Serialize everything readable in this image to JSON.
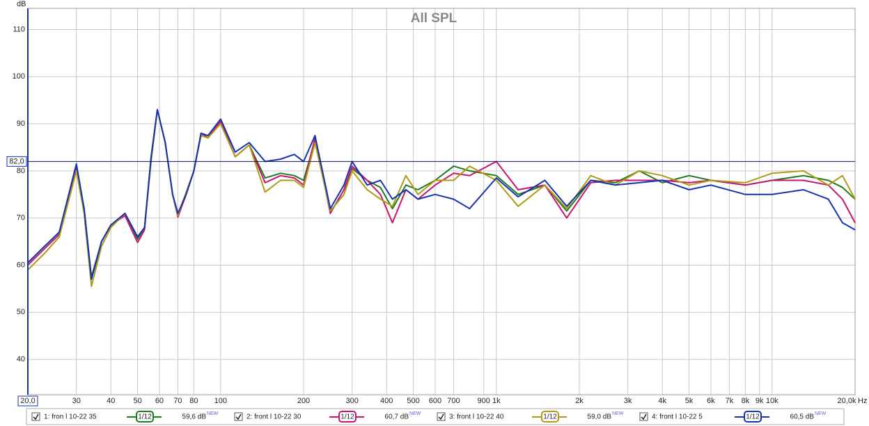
{
  "chart_data": {
    "type": "line",
    "title": "All SPL",
    "y_unit": "dB",
    "x_unit": "Hz",
    "log_x": true,
    "grid": true,
    "xlim": [
      20,
      20000
    ],
    "ylim": [
      32.5,
      114.5
    ],
    "xticks": [
      {
        "value": 20,
        "label": "20,0"
      },
      30,
      40,
      50,
      60,
      70,
      80,
      100,
      200,
      300,
      400,
      500,
      600,
      700,
      900,
      {
        "value": 1000,
        "label": "1k"
      },
      {
        "value": 2000,
        "label": "2k"
      },
      {
        "value": 3000,
        "label": "3k"
      },
      {
        "value": 4000,
        "label": "4k"
      },
      {
        "value": 5000,
        "label": "5k"
      },
      {
        "value": 6000,
        "label": "6k"
      },
      {
        "value": 7000,
        "label": "7k"
      },
      {
        "value": 8000,
        "label": "8k"
      },
      {
        "value": 9000,
        "label": "9k"
      },
      {
        "value": 10000,
        "label": "10k"
      },
      {
        "value": 20000,
        "label": "20,0k"
      }
    ],
    "yticks": [
      40,
      50,
      60,
      70,
      80,
      90,
      100,
      110
    ],
    "cursor_y": {
      "value": 82,
      "label": "82,0"
    },
    "x": [
      20,
      23,
      26,
      30,
      32,
      34,
      37,
      40,
      45,
      50,
      53,
      56,
      59,
      63,
      67,
      70,
      75,
      80,
      85,
      90,
      100,
      113,
      127,
      145,
      165,
      185,
      200,
      220,
      250,
      280,
      300,
      340,
      380,
      420,
      470,
      520,
      600,
      700,
      800,
      1000,
      1200,
      1500,
      1800,
      2200,
      2700,
      3300,
      4000,
      5000,
      6000,
      8000,
      10000,
      13000,
      16000,
      18000,
      20000
    ],
    "series": [
      {
        "name": "1: fron l 10-22 35",
        "color": "#1e7a1e",
        "smoothing": "1/12",
        "level": "59,6 dB",
        "badge": "NEW",
        "values": [
          60.5,
          64,
          67,
          81,
          72,
          57.5,
          65,
          68.5,
          71,
          65.5,
          68,
          83,
          93,
          86,
          75,
          70.5,
          75,
          80,
          88,
          87,
          90.5,
          83,
          85.5,
          78.5,
          79.5,
          79,
          78,
          86.5,
          71.5,
          75,
          80.5,
          78,
          76.5,
          72,
          77,
          76,
          78,
          81,
          80,
          79,
          75,
          77,
          71.5,
          78,
          77.5,
          80,
          77.5,
          79,
          78,
          77,
          78,
          79,
          78,
          76.5,
          74
        ]
      },
      {
        "name": "2: front l 10-22 30",
        "color": "#c8146e",
        "smoothing": "1/12",
        "level": "60,7 dB",
        "badge": "NEW",
        "values": [
          60,
          63.5,
          66.5,
          80.5,
          72,
          57,
          65,
          68.5,
          70.5,
          64.8,
          67.5,
          83,
          93,
          86,
          75,
          70.2,
          75,
          80,
          88,
          87,
          90.5,
          83,
          85.5,
          77.5,
          79,
          78.5,
          77,
          87,
          71,
          76,
          81,
          78,
          75,
          69,
          76,
          74,
          77,
          79.5,
          79,
          82,
          76,
          77,
          70,
          77.5,
          78,
          78,
          78,
          77.5,
          78,
          77,
          78,
          78,
          77,
          74,
          69
        ]
      },
      {
        "name": "3: front l 10-22 40",
        "color": "#b09a14",
        "smoothing": "1/12",
        "level": "59,0 dB",
        "badge": "NEW",
        "values": [
          59,
          62.5,
          66,
          80,
          71,
          55.5,
          64,
          68,
          71,
          66,
          68,
          82,
          93,
          86,
          75,
          70.5,
          75.5,
          80,
          87.5,
          87,
          90,
          83,
          85.5,
          75.5,
          78,
          78,
          76.5,
          86,
          71.5,
          75,
          80,
          76,
          74,
          72.5,
          79,
          75,
          78,
          78,
          81,
          78,
          72.5,
          77,
          72,
          79,
          77,
          80,
          79,
          77,
          78,
          77.5,
          79.5,
          80,
          77,
          79,
          74
        ]
      },
      {
        "name": "4: front l 10-22 5",
        "color": "#1432b4",
        "smoothing": "1/12",
        "level": "60,5 dB",
        "badge": "NEW",
        "values": [
          60.5,
          64,
          67,
          81.5,
          72,
          57,
          65,
          68.5,
          71,
          66,
          68,
          83,
          93,
          86,
          75,
          71,
          75,
          80,
          88,
          87.5,
          91,
          84,
          86,
          82,
          82.5,
          83.5,
          82,
          87.5,
          72,
          77,
          82,
          77,
          78,
          74,
          76,
          74,
          75,
          74,
          72,
          78.5,
          74.5,
          78,
          72.5,
          78,
          77,
          77.5,
          78,
          76,
          77,
          75,
          75,
          76,
          74,
          69,
          67.5
        ]
      }
    ]
  }
}
